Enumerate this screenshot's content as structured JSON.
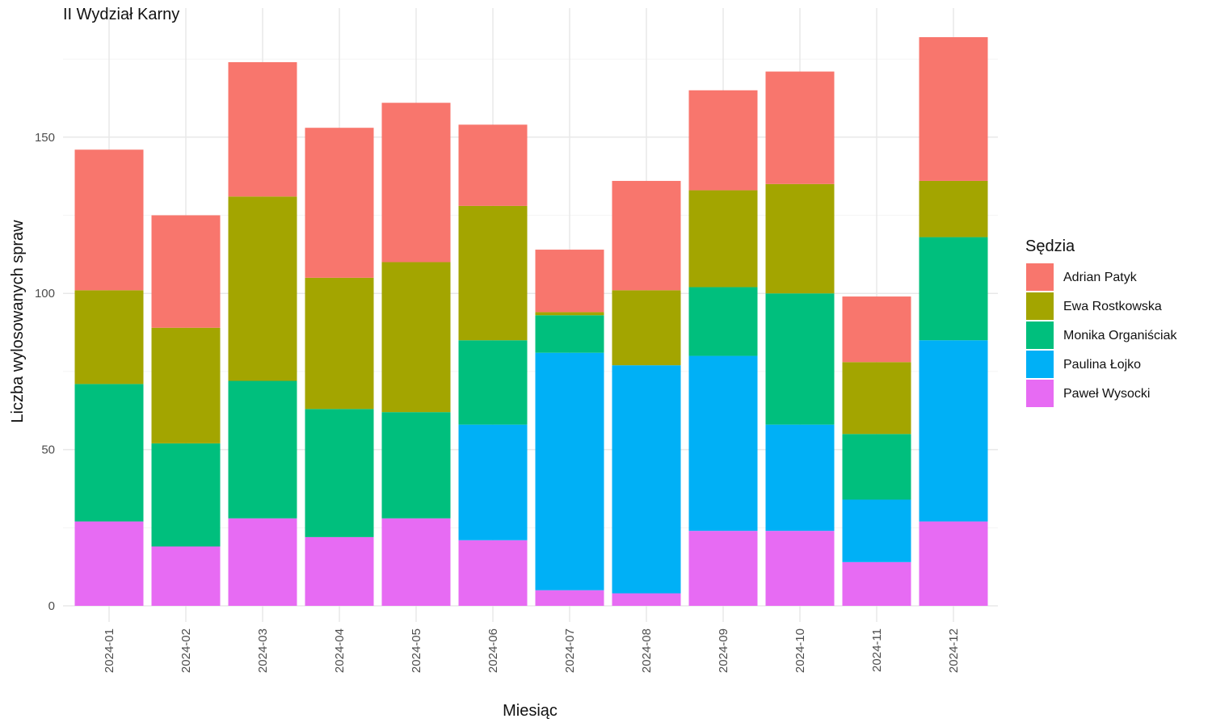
{
  "chart_data": {
    "type": "bar",
    "stacked": true,
    "title": "II Wydział Karny",
    "xlabel": "Miesiąc",
    "ylabel": "Liczba wylosowanych spraw",
    "categories": [
      "2024-01",
      "2024-02",
      "2024-03",
      "2024-04",
      "2024-05",
      "2024-06",
      "2024-07",
      "2024-08",
      "2024-09",
      "2024-10",
      "2024-11",
      "2024-12"
    ],
    "ylim": [
      0,
      190
    ],
    "yticks": [
      0,
      50,
      100,
      150
    ],
    "grid": true,
    "legend": {
      "title": "Sędzia",
      "position": "right"
    },
    "series": [
      {
        "name": "Paweł Wysocki",
        "color": "#E76BF3",
        "values": [
          27,
          19,
          28,
          22,
          28,
          21,
          5,
          4,
          24,
          24,
          14,
          27
        ]
      },
      {
        "name": "Paulina Łojko",
        "color": "#00B0F6",
        "values": [
          0,
          0,
          0,
          0,
          0,
          37,
          76,
          73,
          56,
          34,
          20,
          58
        ]
      },
      {
        "name": "Monika Organiściak",
        "color": "#00BF7D",
        "values": [
          44,
          33,
          44,
          41,
          34,
          27,
          12,
          0,
          22,
          42,
          21,
          33
        ]
      },
      {
        "name": "Ewa Rostkowska",
        "color": "#A3A500",
        "values": [
          30,
          37,
          59,
          42,
          48,
          43,
          1,
          24,
          31,
          35,
          23,
          18
        ]
      },
      {
        "name": "Adrian Patyk",
        "color": "#F8766D",
        "values": [
          45,
          36,
          43,
          48,
          51,
          26,
          20,
          35,
          32,
          36,
          21,
          46
        ]
      }
    ],
    "legend_order": [
      "Adrian Patyk",
      "Ewa Rostkowska",
      "Monika Organiściak",
      "Paulina Łojko",
      "Paweł Wysocki"
    ]
  }
}
